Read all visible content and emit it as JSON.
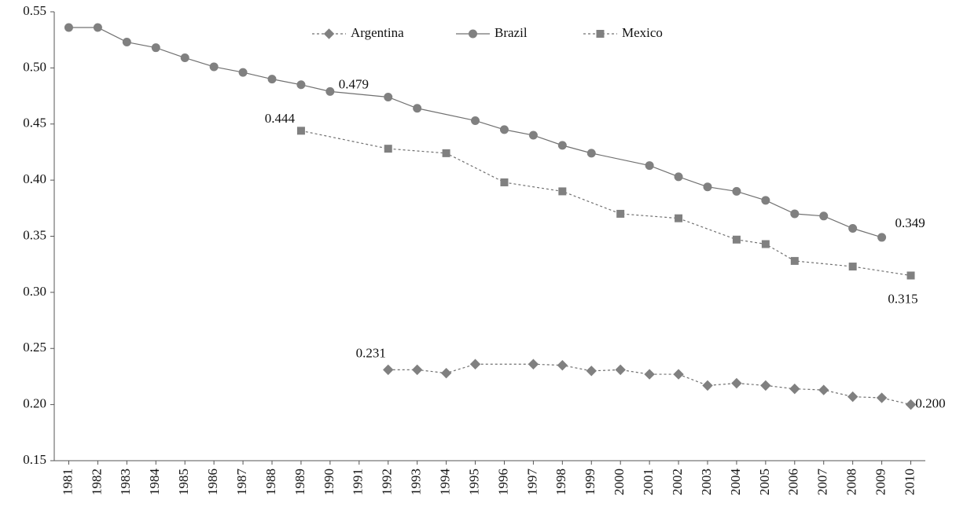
{
  "chart_data": {
    "type": "line",
    "xlim": [
      1980.5,
      2010.5
    ],
    "xticks": [
      1981,
      1982,
      1983,
      1984,
      1985,
      1986,
      1987,
      1988,
      1989,
      1990,
      1991,
      1992,
      1993,
      1994,
      1995,
      1996,
      1997,
      1998,
      1999,
      2000,
      2001,
      2002,
      2003,
      2004,
      2005,
      2006,
      2007,
      2008,
      2009,
      2010
    ],
    "ylim": [
      0.15,
      0.55
    ],
    "yticks": [
      0.15,
      {
        "value": 0.2,
        "label": "0.20"
      },
      0.25,
      {
        "value": 0.3,
        "label": "0.30"
      },
      0.35,
      {
        "value": 0.4,
        "label": "0.40"
      },
      0.45,
      {
        "value": 0.5,
        "label": "0.50"
      },
      0.55
    ],
    "grid": false,
    "legend": "top",
    "series": [
      {
        "name": "Argentina",
        "color": "#808080",
        "marker": "diamond",
        "line_style": "dashed",
        "x": [
          1992,
          1993,
          1994,
          1995,
          1997,
          1998,
          1999,
          2000,
          2001,
          2002,
          2003,
          2004,
          2005,
          2006,
          2007,
          2008,
          2009,
          2010
        ],
        "values": [
          0.231,
          0.231,
          0.228,
          0.236,
          0.236,
          0.235,
          0.23,
          0.231,
          0.227,
          0.227,
          0.217,
          0.219,
          0.217,
          0.214,
          0.213,
          0.207,
          0.206,
          0.2
        ],
        "value_labels": [
          "0.231",
          null,
          null,
          null,
          null,
          null,
          null,
          null,
          null,
          null,
          null,
          null,
          null,
          null,
          null,
          null,
          null,
          "0.200"
        ]
      },
      {
        "name": "Brazil",
        "color": "#808080",
        "marker": "circle",
        "line_style": "solid",
        "x": [
          1981,
          1982,
          1983,
          1984,
          1985,
          1986,
          1987,
          1988,
          1989,
          1990,
          1992,
          1993,
          1995,
          1996,
          1997,
          1998,
          1999,
          2001,
          2002,
          2003,
          2004,
          2005,
          2006,
          2007,
          2008,
          2009
        ],
        "values": [
          0.536,
          0.536,
          0.523,
          0.518,
          0.509,
          0.501,
          0.496,
          0.49,
          0.485,
          0.479,
          0.474,
          0.464,
          0.453,
          0.445,
          0.44,
          0.431,
          0.424,
          0.413,
          0.403,
          0.394,
          0.39,
          0.382,
          0.37,
          0.368,
          0.357,
          0.349
        ],
        "value_labels": [
          null,
          null,
          null,
          null,
          null,
          null,
          null,
          null,
          null,
          "0.479",
          null,
          null,
          null,
          null,
          null,
          null,
          null,
          null,
          null,
          null,
          null,
          null,
          null,
          null,
          null,
          "0.349"
        ]
      },
      {
        "name": "Mexico",
        "color": "#808080",
        "marker": "square",
        "line_style": "dashed",
        "x": [
          1989,
          1992,
          1994,
          1996,
          1998,
          2000,
          2002,
          2004,
          2005,
          2006,
          2008,
          2010
        ],
        "values": [
          0.444,
          0.428,
          0.424,
          0.398,
          0.39,
          0.37,
          0.366,
          0.347,
          0.343,
          0.328,
          0.323,
          0.315
        ],
        "value_labels": [
          "0.444",
          null,
          null,
          null,
          null,
          null,
          null,
          null,
          null,
          null,
          null,
          "0.315"
        ]
      }
    ]
  }
}
